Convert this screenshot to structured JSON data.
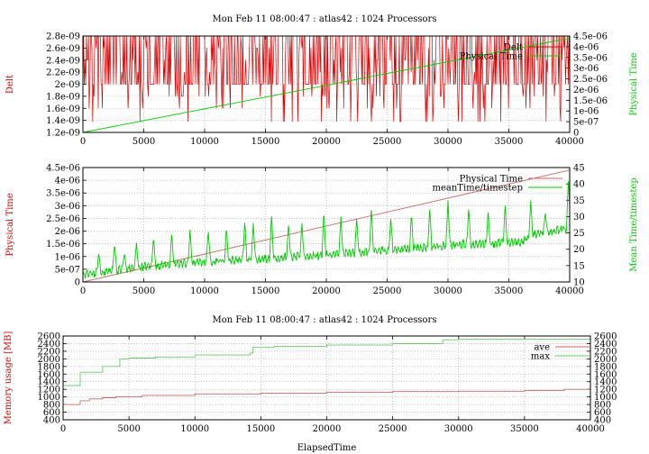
{
  "figure_title": "Mon Feb 11 08:00:47 : atlas42 : 1024 Processors",
  "colors": {
    "red": "#dd0000",
    "green": "#00cc00",
    "muted_red": "#cc6666",
    "muted_green": "#66cc66",
    "grid": "#a0a0a0"
  },
  "chart_data": [
    {
      "type": "line",
      "title": "Mon Feb 11 08:00:47 : atlas42 : 1024 Processors",
      "xlabel": "",
      "ylabel": "Delt",
      "y2label": "Physical Time",
      "xlim": [
        0,
        40000
      ],
      "ylim": [
        1.2e-09,
        2.8e-09
      ],
      "y2lim": [
        0,
        4.5e-06
      ],
      "xticks": [
        "0",
        "5000",
        "10000",
        "15000",
        "20000",
        "25000",
        "30000",
        "35000",
        "40000"
      ],
      "yticks": [
        "1.2e-09",
        "1.4e-09",
        "1.6e-09",
        "1.8e-09",
        "2e-09",
        "2.2e-09",
        "2.4e-09",
        "2.6e-09",
        "2.8e-09"
      ],
      "y2ticks": [
        "0",
        "5e-07",
        "1e-06",
        "1.5e-06",
        "2e-06",
        "2.5e-06",
        "3e-06",
        "3.5e-06",
        "4e-06",
        "4.5e-06"
      ],
      "grid": true,
      "legend_placement": "top-right",
      "series": [
        {
          "name": "Delt",
          "axis": "y",
          "color": "#dd0000",
          "pattern": "noisy",
          "min": 1.38e-09,
          "max": 2.8e-09,
          "baseline": 2e-09
        },
        {
          "name": "Physical Time",
          "axis": "y2",
          "color": "#00cc00",
          "x": [
            0,
            5000,
            10000,
            15000,
            20000,
            25000,
            30000,
            35000,
            40000
          ],
          "y": [
            0,
            5.5e-07,
            1.1e-06,
            1.65e-06,
            2.2e-06,
            2.75e-06,
            3.3e-06,
            3.85e-06,
            4.4e-06
          ]
        }
      ]
    },
    {
      "type": "line",
      "title": "",
      "xlabel": "",
      "ylabel": "Physical Time",
      "y2label": "Mean Time/timestep",
      "xlim": [
        0,
        40000
      ],
      "ylim": [
        0,
        4.5e-06
      ],
      "y2lim": [
        10,
        45
      ],
      "xticks": [
        "0",
        "5000",
        "10000",
        "15000",
        "20000",
        "25000",
        "30000",
        "35000",
        "40000"
      ],
      "yticks": [
        "0",
        "5e-07",
        "1e-06",
        "1.5e-06",
        "2e-06",
        "2.5e-06",
        "3e-06",
        "3.5e-06",
        "4e-06",
        "4.5e-06"
      ],
      "y2ticks": [
        "10",
        "15",
        "20",
        "25",
        "30",
        "35",
        "40",
        "45"
      ],
      "grid": true,
      "legend_placement": "top-right",
      "series": [
        {
          "name": "Physical Time",
          "axis": "y",
          "color": "#cc6666",
          "x": [
            0,
            5000,
            10000,
            15000,
            20000,
            25000,
            30000,
            35000,
            40000
          ],
          "y": [
            0,
            5.5e-07,
            1.1e-06,
            1.65e-06,
            2.2e-06,
            2.75e-06,
            3.3e-06,
            3.85e-06,
            4.4e-06
          ]
        },
        {
          "name": "meanTime/timestep",
          "axis": "y2",
          "color": "#00cc00",
          "pattern": "spiky",
          "baseline_x": [
            0,
            5000,
            10000,
            20000,
            30000,
            36000,
            37500,
            40000
          ],
          "baseline_y": [
            12,
            14.5,
            16,
            18,
            21,
            22,
            25,
            26
          ],
          "spikes": [
            {
              "x": 1300,
              "y": 19
            },
            {
              "x": 2600,
              "y": 22
            },
            {
              "x": 3400,
              "y": 19
            },
            {
              "x": 4400,
              "y": 22
            },
            {
              "x": 5800,
              "y": 24
            },
            {
              "x": 7300,
              "y": 25
            },
            {
              "x": 8800,
              "y": 26
            },
            {
              "x": 10300,
              "y": 26
            },
            {
              "x": 11800,
              "y": 27
            },
            {
              "x": 13300,
              "y": 29
            },
            {
              "x": 14000,
              "y": 28
            },
            {
              "x": 15500,
              "y": 31
            },
            {
              "x": 16900,
              "y": 28
            },
            {
              "x": 18000,
              "y": 28
            },
            {
              "x": 19800,
              "y": 32
            },
            {
              "x": 21200,
              "y": 30
            },
            {
              "x": 22500,
              "y": 30
            },
            {
              "x": 23700,
              "y": 33
            },
            {
              "x": 25300,
              "y": 30
            },
            {
              "x": 27000,
              "y": 31
            },
            {
              "x": 28500,
              "y": 33
            },
            {
              "x": 30000,
              "y": 35
            },
            {
              "x": 31700,
              "y": 33
            },
            {
              "x": 33300,
              "y": 32
            },
            {
              "x": 34700,
              "y": 34
            },
            {
              "x": 36800,
              "y": 35
            },
            {
              "x": 38000,
              "y": 31
            },
            {
              "x": 39900,
              "y": 42
            }
          ]
        }
      ]
    },
    {
      "type": "line",
      "title": "Mon Feb 11 08:00:47 : atlas42 : 1024 Processors",
      "xlabel": "ElapsedTime",
      "ylabel": "Memory usage [MB]",
      "y2label": "",
      "xlim": [
        0,
        40000
      ],
      "ylim": [
        400,
        2600
      ],
      "y2lim": [
        400,
        2600
      ],
      "xticks": [
        "0",
        "5000",
        "10000",
        "15000",
        "20000",
        "25000",
        "30000",
        "35000",
        "40000"
      ],
      "yticks": [
        "400",
        "600",
        "800",
        "1000",
        "1200",
        "1400",
        "1600",
        "1800",
        "2000",
        "2200",
        "2400",
        "2600"
      ],
      "y2ticks": [
        "400",
        "600",
        "800",
        "1000",
        "1200",
        "1400",
        "1600",
        "1800",
        "2000",
        "2200",
        "2400",
        "2600"
      ],
      "grid": true,
      "legend_placement": "top-right",
      "series": [
        {
          "name": "ave",
          "color": "#cc6666",
          "step": true,
          "x": [
            0,
            1200,
            1300,
            2000,
            3000,
            4000,
            6000,
            10000,
            15000,
            20000,
            25000,
            30000,
            35000,
            38000,
            40000
          ],
          "y": [
            800,
            800,
            900,
            950,
            980,
            1000,
            1040,
            1080,
            1100,
            1120,
            1140,
            1150,
            1170,
            1200,
            1200
          ]
        },
        {
          "name": "max",
          "color": "#66cc66",
          "step": true,
          "x": [
            0,
            1200,
            1300,
            2900,
            3000,
            4200,
            4300,
            5000,
            7000,
            10000,
            14200,
            14400,
            16000,
            20000,
            25000,
            28600,
            28800,
            30000,
            40000
          ],
          "y": [
            1300,
            1300,
            1650,
            1650,
            1800,
            1800,
            2000,
            2020,
            2050,
            2100,
            2150,
            2300,
            2330,
            2360,
            2400,
            2400,
            2500,
            2520,
            2530
          ]
        }
      ]
    }
  ]
}
